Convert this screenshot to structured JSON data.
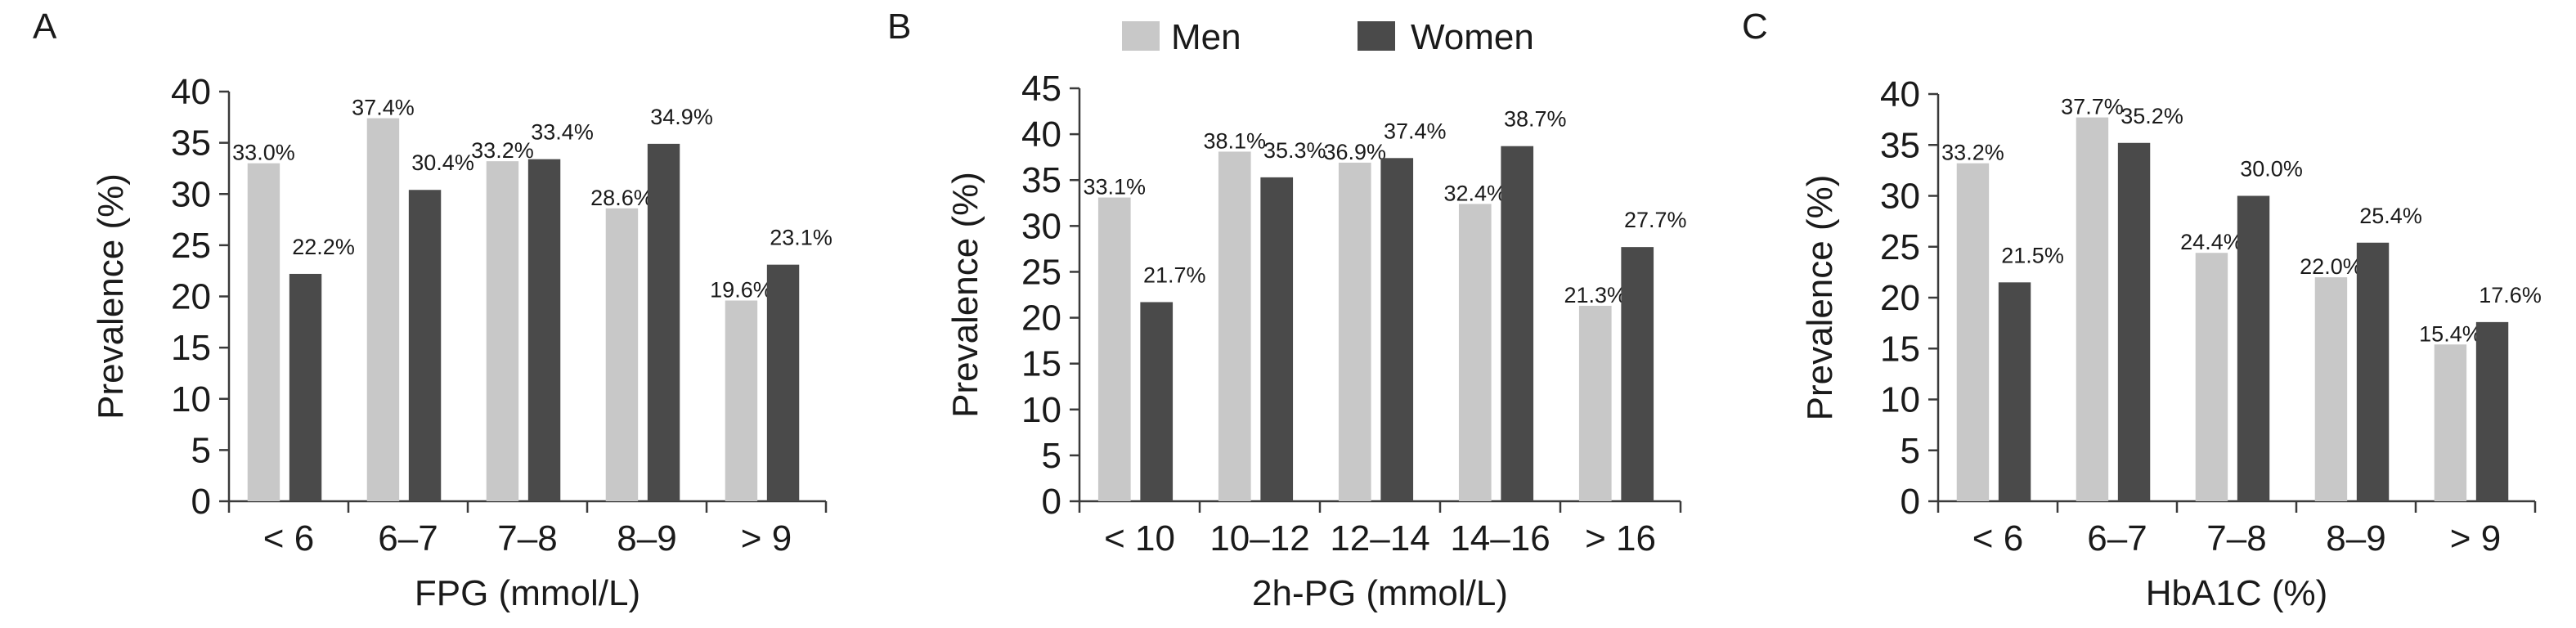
{
  "legend": {
    "items": [
      {
        "label": "Men",
        "color": "#c8c8c8"
      },
      {
        "label": "Women",
        "color": "#4a4a4a"
      }
    ]
  },
  "chart_data": [
    {
      "type": "bar",
      "panel_label": "A",
      "categories": [
        "< 6",
        "6–7",
        "7–8",
        "8–9",
        "> 9"
      ],
      "series": [
        {
          "name": "Men",
          "values": [
            33.0,
            37.4,
            33.2,
            28.6,
            19.6
          ],
          "labels": [
            "33.0%",
            "37.4%",
            "33.2%",
            "28.6%",
            "19.6%"
          ],
          "color": "#c8c8c8"
        },
        {
          "name": "Women",
          "values": [
            22.2,
            30.4,
            33.4,
            34.9,
            23.1
          ],
          "labels": [
            "22.2%",
            "30.4%",
            "33.4%",
            "34.9%",
            "23.1%"
          ],
          "color": "#4a4a4a"
        }
      ],
      "xlabel": "FPG (mmol/L)",
      "ylabel": "Prevalence (%)",
      "ylim": [
        0,
        40
      ],
      "yticks": [
        "0",
        "5",
        "10",
        "15",
        "20",
        "25",
        "30",
        "35",
        "40"
      ],
      "grid": false
    },
    {
      "type": "bar",
      "panel_label": "B",
      "categories": [
        "< 10",
        "10–12",
        "12–14",
        "14–16",
        "> 16"
      ],
      "series": [
        {
          "name": "Men",
          "values": [
            33.1,
            38.1,
            36.9,
            32.4,
            21.3
          ],
          "labels": [
            "33.1%",
            "38.1%",
            "36.9%",
            "32.4%",
            "21.3%"
          ],
          "color": "#c8c8c8"
        },
        {
          "name": "Women",
          "values": [
            21.7,
            35.3,
            37.4,
            38.7,
            27.7
          ],
          "labels": [
            "21.7%",
            "35.3%",
            "37.4%",
            "38.7%",
            "27.7%"
          ],
          "color": "#4a4a4a"
        }
      ],
      "xlabel": "2h-PG (mmol/L)",
      "ylabel": "Prevalence (%)",
      "ylim": [
        0,
        45
      ],
      "yticks": [
        "0",
        "5",
        "10",
        "15",
        "20",
        "25",
        "30",
        "35",
        "40",
        "45"
      ],
      "grid": false
    },
    {
      "type": "bar",
      "panel_label": "C",
      "categories": [
        "< 6",
        "6–7",
        "7–8",
        "8–9",
        "> 9"
      ],
      "series": [
        {
          "name": "Men",
          "values": [
            33.2,
            37.7,
            24.4,
            22.0,
            15.4
          ],
          "labels": [
            "33.2%",
            "37.7%",
            "24.4%",
            "22.0%",
            "15.4%"
          ],
          "color": "#c8c8c8"
        },
        {
          "name": "Women",
          "values": [
            21.5,
            35.2,
            30.0,
            25.4,
            17.6
          ],
          "labels": [
            "21.5%",
            "35.2%",
            "30.0%",
            "25.4%",
            "17.6%"
          ],
          "color": "#4a4a4a"
        }
      ],
      "xlabel": "HbA1C (%)",
      "ylabel": "Prevalence (%)",
      "ylim": [
        0,
        40
      ],
      "yticks": [
        "0",
        "5",
        "10",
        "15",
        "20",
        "25",
        "30",
        "35",
        "40"
      ],
      "grid": false
    }
  ]
}
